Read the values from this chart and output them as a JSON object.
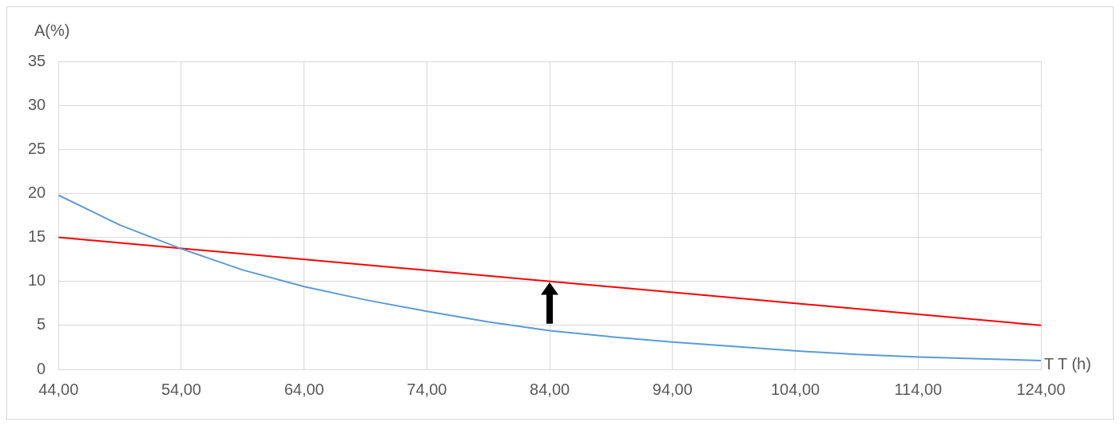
{
  "chart_data": {
    "type": "line",
    "xlabel": "T T (h)",
    "ylabel": "A(%)",
    "xlim": [
      44,
      124
    ],
    "xticks": [
      {
        "value": 44,
        "label": "44,00"
      },
      {
        "value": 54,
        "label": "54,00"
      },
      {
        "value": 64,
        "label": "64,00"
      },
      {
        "value": 74,
        "label": "74,00"
      },
      {
        "value": 84,
        "label": "84,00"
      },
      {
        "value": 94,
        "label": "94,00"
      },
      {
        "value": 104,
        "label": "104,00"
      },
      {
        "value": 114,
        "label": "114,00"
      },
      {
        "value": 124,
        "label": "124,00"
      }
    ],
    "ylim": [
      0,
      35
    ],
    "yticks": [
      0,
      5,
      10,
      15,
      20,
      25,
      30,
      35
    ],
    "grid": true,
    "legend": false,
    "marker": "none",
    "line_style": "solid",
    "series": [
      {
        "color": "#5b9bd5",
        "x": [
          44,
          49,
          54,
          59,
          64,
          69,
          74,
          79,
          84,
          89,
          94,
          99,
          104,
          109,
          114,
          119,
          124
        ],
        "values": [
          19.8,
          16.4,
          13.7,
          11.3,
          9.4,
          7.9,
          6.6,
          5.4,
          4.4,
          3.7,
          3.1,
          2.6,
          2.1,
          1.7,
          1.4,
          1.2,
          1.0
        ]
      },
      {
        "color": "#ff0000",
        "x": [
          44,
          124
        ],
        "values": [
          15,
          5
        ]
      }
    ]
  }
}
